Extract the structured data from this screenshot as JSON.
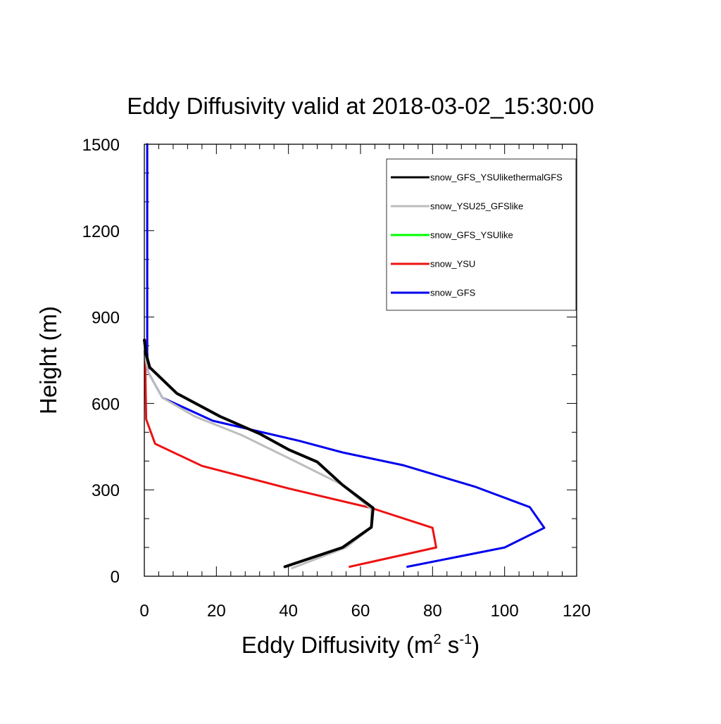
{
  "chart_data": {
    "type": "line",
    "title": "Eddy Diffusivity valid at 2018-03-02_15:30:00",
    "xlabel": {
      "prefix": "Eddy Diffusivity (m",
      "sup1": "2",
      "mid": " s",
      "sup2": "-1",
      "suffix": ")"
    },
    "ylabel": "Height (m)",
    "xlim": [
      0,
      120
    ],
    "ylim": [
      0,
      1500
    ],
    "xticks": [
      0,
      20,
      40,
      60,
      80,
      100,
      120
    ],
    "yticks": [
      0,
      300,
      600,
      900,
      1200,
      1500
    ],
    "grid": false,
    "legend_position": "top-right",
    "series": [
      {
        "name": "snow_GFS_YSUlikethermalGFS",
        "color": "#000000",
        "points": [
          [
            39,
            33
          ],
          [
            55,
            100
          ],
          [
            63,
            170
          ],
          [
            63.5,
            237
          ],
          [
            55,
            317
          ],
          [
            48,
            397
          ],
          [
            40,
            440
          ],
          [
            32,
            495
          ],
          [
            21,
            555
          ],
          [
            9,
            635
          ],
          [
            1.5,
            725
          ],
          [
            0.5,
            770
          ],
          [
            0,
            820
          ]
        ]
      },
      {
        "name": "snow_YSU25_GFSlike",
        "color": "#bdbdbd",
        "points": [
          [
            41,
            28
          ],
          [
            56,
            100
          ],
          [
            63,
            170
          ],
          [
            63,
            233
          ],
          [
            55,
            317
          ],
          [
            43,
            392
          ],
          [
            27,
            490
          ],
          [
            14,
            555
          ],
          [
            5,
            620
          ],
          [
            1,
            710
          ],
          [
            0,
            780
          ]
        ]
      },
      {
        "name": "snow_GFS_YSUlike",
        "color": "#00ff00",
        "points": [
          [
            39,
            33
          ],
          [
            55,
            100
          ],
          [
            63,
            170
          ],
          [
            63.5,
            237
          ],
          [
            55,
            317
          ],
          [
            48,
            397
          ],
          [
            40,
            440
          ],
          [
            32,
            495
          ],
          [
            21,
            555
          ],
          [
            9,
            635
          ],
          [
            1.5,
            725
          ],
          [
            0.5,
            770
          ],
          [
            0,
            820
          ]
        ]
      },
      {
        "name": "snow_YSU",
        "color": "#ee1111",
        "points": [
          [
            57,
            33
          ],
          [
            81,
            100
          ],
          [
            80,
            168
          ],
          [
            63,
            237
          ],
          [
            40,
            305
          ],
          [
            16,
            383
          ],
          [
            3,
            460
          ],
          [
            0.5,
            545
          ],
          [
            0.3,
            700
          ],
          [
            0.2,
            820
          ]
        ]
      },
      {
        "name": "snow_GFS",
        "color": "#0000ee",
        "points": [
          [
            73,
            33
          ],
          [
            100,
            100
          ],
          [
            111,
            168
          ],
          [
            107,
            240
          ],
          [
            92,
            310
          ],
          [
            72,
            385
          ],
          [
            55,
            430
          ],
          [
            43,
            470
          ],
          [
            19,
            540
          ],
          [
            5,
            620
          ],
          [
            1,
            710
          ],
          [
            0.8,
            780
          ],
          [
            0.8,
            900
          ],
          [
            0.8,
            1200
          ],
          [
            0.8,
            1500
          ]
        ]
      }
    ]
  }
}
